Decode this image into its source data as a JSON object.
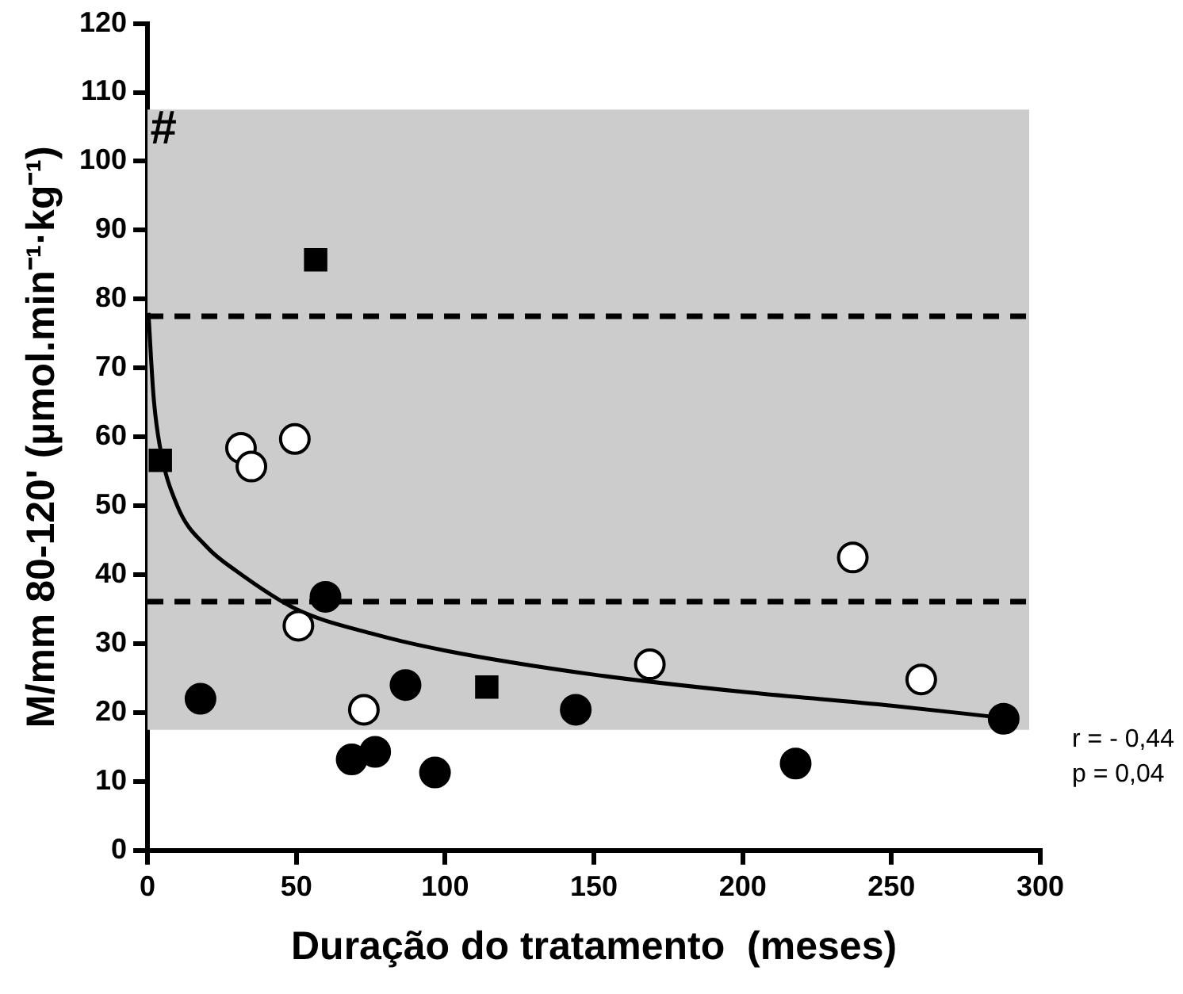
{
  "chart_data": {
    "type": "scatter",
    "xlabel": "Duração do tratamento  (meses)",
    "ylabel": "M/mm 80-120' (µmol.min⁻¹·kg⁻¹)",
    "xlim": [
      0,
      300
    ],
    "xticks": [
      0,
      50,
      100,
      150,
      200,
      250,
      300
    ],
    "ylim": [
      0,
      120
    ],
    "yticks": [
      0,
      10,
      20,
      30,
      40,
      50,
      60,
      70,
      80,
      90,
      100,
      110,
      120
    ],
    "grid": false,
    "legend": false,
    "series": [
      {
        "color": "#000000",
        "marker": "square",
        "x": [
          4.3,
          56.5,
          114
        ],
        "values": [
          56.6,
          85.7,
          23.7
        ]
      },
      {
        "color": "#000000",
        "marker": "circle",
        "x": [
          17.8,
          59.8,
          86.7,
          68.6,
          76.5,
          96.6,
          143.9,
          217.8,
          287.7
        ],
        "values": [
          22.0,
          36.8,
          24.0,
          13.2,
          14.3,
          11.3,
          20.4,
          12.6,
          19.1
        ]
      },
      {
        "color": "#ffffff",
        "marker": "circle",
        "x": [
          31.4,
          34.9,
          49.5,
          50.7,
          72.7,
          168.8,
          237,
          260
        ],
        "values": [
          58.4,
          55.7,
          59.7,
          32.6,
          20.4,
          27.0,
          42.5,
          24.8
        ]
      },
      {
        "type": "line",
        "color": "#000000",
        "marker": "none",
        "line_style": "solid",
        "x": [
          0.3,
          2,
          4,
          10,
          20,
          30,
          50,
          75,
          100,
          150,
          200,
          250,
          288
        ],
        "values": [
          78,
          66,
          59,
          50,
          44,
          40.5,
          35,
          31.5,
          29,
          25.5,
          23,
          21,
          19.2
        ]
      }
    ],
    "bands": [
      {
        "axis": "y",
        "from": 17.5,
        "to": 107.5,
        "color": "#cccccc"
      }
    ],
    "ref_lines": [
      {
        "axis": "y",
        "value": 77.5,
        "line_style": "dashed",
        "color": "#000000"
      },
      {
        "axis": "y",
        "value": 36.1,
        "line_style": "dashed",
        "color": "#000000"
      }
    ],
    "annotations": [
      {
        "text": "#",
        "x": 0,
        "y": 105
      },
      "r = - 0,44",
      "p = 0,04"
    ]
  }
}
